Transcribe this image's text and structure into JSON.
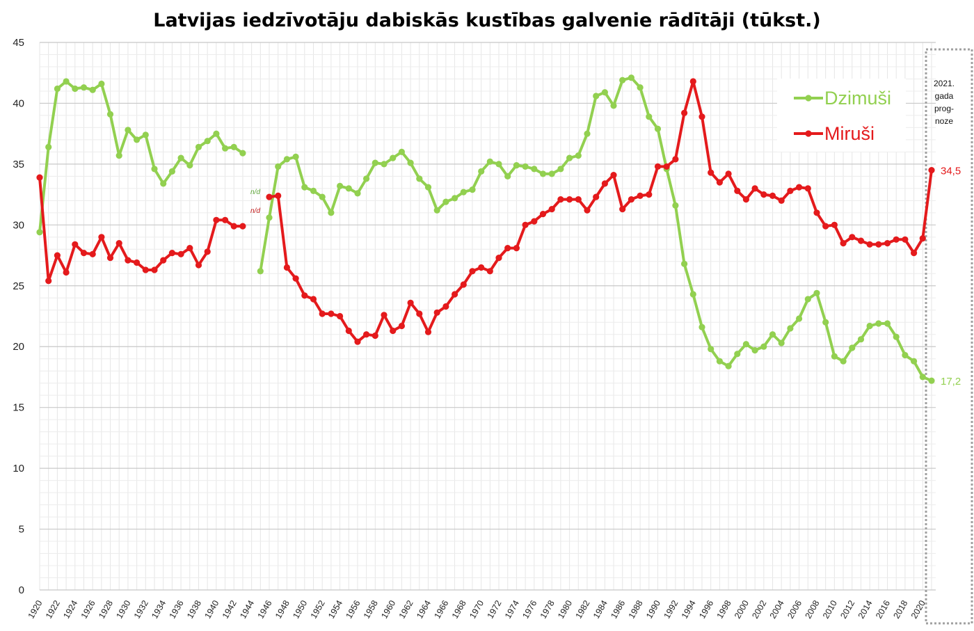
{
  "chart_data": {
    "type": "line",
    "title": "Latvijas iedzīvotāju dabiskās kustības galvenie rādītāji (tūkst.)",
    "xlabel": "",
    "ylabel": "",
    "ylim": [
      0,
      45
    ],
    "xlim": [
      1920,
      2021
    ],
    "yticks": [
      "0",
      "5",
      "10",
      "15",
      "20",
      "25",
      "30",
      "35",
      "40",
      "45"
    ],
    "xticks": [
      1920,
      1922,
      1924,
      1926,
      1928,
      1930,
      1932,
      1934,
      1936,
      1938,
      1940,
      1942,
      1944,
      1946,
      1948,
      1950,
      1952,
      1954,
      1956,
      1958,
      1960,
      1962,
      1964,
      1966,
      1968,
      1970,
      1972,
      1974,
      1976,
      1978,
      1980,
      1982,
      1984,
      1986,
      1988,
      1990,
      1992,
      1994,
      1996,
      1998,
      2000,
      2002,
      2004,
      2006,
      2008,
      2010,
      2012,
      2014,
      2016,
      2018,
      2020
    ],
    "grid": true,
    "legend_position": "top-right",
    "series": [
      {
        "name": "Dzimuši",
        "color": "#92d050",
        "segments": [
          {
            "x": [
              1920,
              1921,
              1922,
              1923,
              1924,
              1925,
              1926,
              1927,
              1928,
              1929,
              1930,
              1931,
              1932,
              1933,
              1934,
              1935,
              1936,
              1937,
              1938,
              1939,
              1940,
              1941,
              1942,
              1943
            ],
            "y": [
              29.4,
              36.4,
              41.2,
              41.8,
              41.2,
              41.3,
              41.1,
              41.6,
              39.1,
              35.7,
              37.8,
              37.0,
              37.4,
              34.6,
              33.4,
              34.4,
              35.5,
              34.9,
              36.4,
              36.9,
              37.5,
              36.3,
              36.4,
              35.9
            ]
          },
          {
            "x": [
              1945,
              1946,
              1947,
              1948,
              1949,
              1950,
              1951,
              1952,
              1953,
              1954,
              1955,
              1956,
              1957,
              1958,
              1959,
              1960,
              1961,
              1962,
              1963,
              1964,
              1965,
              1966,
              1967,
              1968,
              1969,
              1970,
              1971,
              1972,
              1973,
              1974,
              1975,
              1976,
              1977,
              1978,
              1979,
              1980,
              1981,
              1982,
              1983,
              1984,
              1985,
              1986,
              1987,
              1988,
              1989,
              1990,
              1991,
              1992,
              1993,
              1994,
              1995,
              1996,
              1997,
              1998,
              1999,
              2000,
              2001,
              2002,
              2003,
              2004,
              2005,
              2006,
              2007,
              2008,
              2009,
              2010,
              2011,
              2012,
              2013,
              2014,
              2015,
              2016,
              2017,
              2018,
              2019,
              2020,
              2021
            ],
            "y": [
              26.2,
              30.6,
              34.8,
              35.4,
              35.6,
              33.1,
              32.8,
              32.3,
              31.0,
              33.2,
              33.0,
              32.6,
              33.8,
              35.1,
              35.0,
              35.5,
              36.0,
              35.1,
              33.8,
              33.1,
              31.2,
              31.9,
              32.2,
              32.7,
              32.9,
              34.4,
              35.2,
              35.0,
              34.0,
              34.9,
              34.8,
              34.6,
              34.2,
              34.2,
              34.6,
              35.5,
              35.7,
              37.5,
              40.6,
              40.9,
              39.8,
              41.9,
              42.1,
              41.3,
              38.9,
              37.9,
              34.6,
              31.6,
              26.8,
              24.3,
              21.6,
              19.8,
              18.8,
              18.4,
              19.4,
              20.2,
              19.7,
              20.0,
              21.0,
              20.3,
              21.5,
              22.3,
              23.9,
              24.4,
              22.0,
              19.2,
              18.8,
              19.9,
              20.6,
              21.7,
              21.9,
              21.9,
              20.8,
              19.3,
              18.8,
              17.5,
              17.2
            ]
          }
        ],
        "end_label": "17,2"
      },
      {
        "name": "Miruši",
        "color": "#e41a1c",
        "segments": [
          {
            "x": [
              1920,
              1921,
              1922,
              1923,
              1924,
              1925,
              1926,
              1927,
              1928,
              1929,
              1930,
              1931,
              1932,
              1933,
              1934,
              1935,
              1936,
              1937,
              1938,
              1939,
              1940,
              1941,
              1942,
              1943
            ],
            "y": [
              33.9,
              25.4,
              27.5,
              26.1,
              28.4,
              27.7,
              27.6,
              29.0,
              27.3,
              28.5,
              27.1,
              26.9,
              26.3,
              26.3,
              27.1,
              27.7,
              27.6,
              28.1,
              26.7,
              27.8,
              30.4,
              30.4,
              29.9,
              29.9
            ]
          },
          {
            "x": [
              1946,
              1947,
              1948,
              1949,
              1950,
              1951,
              1952,
              1953,
              1954,
              1955,
              1956,
              1957,
              1958,
              1959,
              1960,
              1961,
              1962,
              1963,
              1964,
              1965,
              1966,
              1967,
              1968,
              1969,
              1970,
              1971,
              1972,
              1973,
              1974,
              1975,
              1976,
              1977,
              1978,
              1979,
              1980,
              1981,
              1982,
              1983,
              1984,
              1985,
              1986,
              1987,
              1988,
              1989,
              1990,
              1991,
              1992,
              1993,
              1994,
              1995,
              1996,
              1997,
              1998,
              1999,
              2000,
              2001,
              2002,
              2003,
              2004,
              2005,
              2006,
              2007,
              2008,
              2009,
              2010,
              2011,
              2012,
              2013,
              2014,
              2015,
              2016,
              2017,
              2018,
              2019,
              2020,
              2021
            ],
            "y": [
              32.3,
              32.4,
              26.5,
              25.6,
              24.2,
              23.9,
              22.7,
              22.7,
              22.5,
              21.3,
              20.4,
              21.0,
              20.9,
              22.6,
              21.3,
              21.7,
              23.6,
              22.7,
              21.2,
              22.8,
              23.3,
              24.3,
              25.1,
              26.2,
              26.5,
              26.2,
              27.3,
              28.1,
              28.1,
              30.0,
              30.3,
              30.9,
              31.3,
              32.1,
              32.1,
              32.1,
              31.2,
              32.3,
              33.4,
              34.1,
              31.3,
              32.1,
              32.4,
              32.5,
              34.8,
              34.8,
              35.4,
              39.2,
              41.8,
              38.9,
              34.3,
              33.5,
              34.2,
              32.8,
              32.1,
              33.0,
              32.5,
              32.4,
              32.0,
              32.8,
              33.1,
              33.0,
              31.0,
              29.9,
              30.0,
              28.5,
              29.0,
              28.7,
              28.4,
              28.4,
              28.5,
              28.8,
              28.8,
              27.7,
              28.9,
              34.5
            ]
          }
        ],
        "end_label": "34,5"
      }
    ],
    "annotations": {
      "nd_dzimusi": "n/d",
      "nd_mirusi": "n/d",
      "forecast_lines": [
        "2021.",
        "gada",
        "prog-",
        "noze"
      ]
    }
  }
}
